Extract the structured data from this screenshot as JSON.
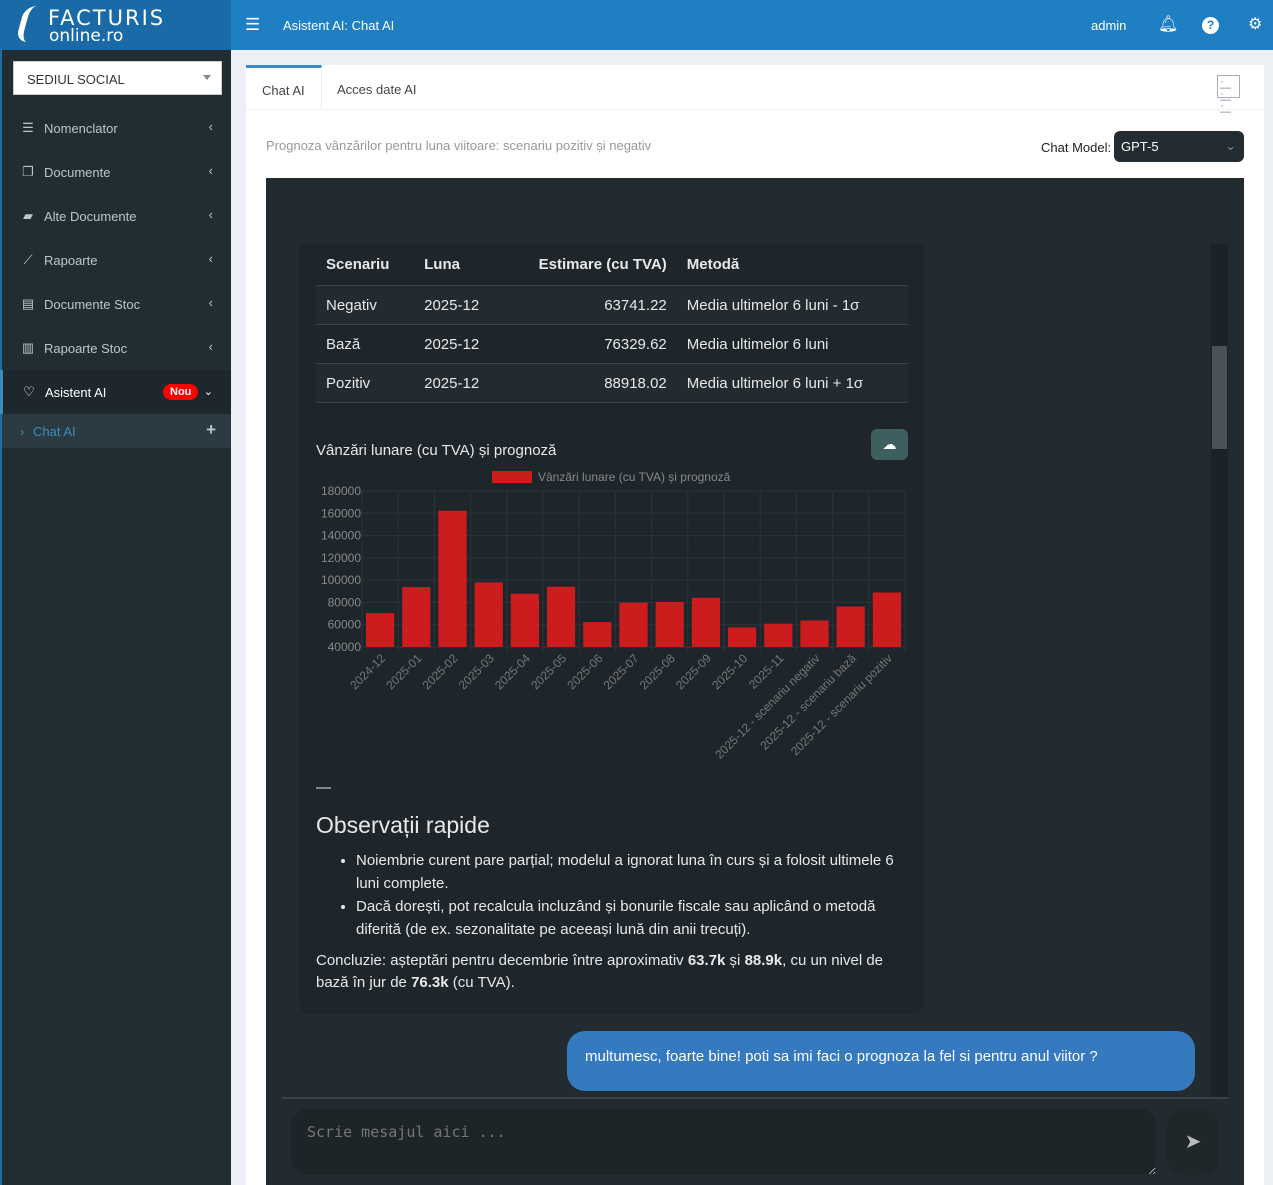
{
  "brand": {
    "line1": "FACTURIS",
    "line2": "online.ro"
  },
  "topbar": {
    "title": "Asistent AI: Chat AI",
    "user": "admin"
  },
  "sidebar": {
    "branch": "SEDIUL SOCIAL",
    "items": [
      {
        "label": "Nomenclator",
        "icon": "list-icon"
      },
      {
        "label": "Documente",
        "icon": "copy-icon"
      },
      {
        "label": "Alte Documente",
        "icon": "folder-open-icon"
      },
      {
        "label": "Rapoarte",
        "icon": "line-chart-icon"
      },
      {
        "label": "Documente Stoc",
        "icon": "file-text-icon"
      },
      {
        "label": "Rapoarte Stoc",
        "icon": "bar-chart-icon"
      },
      {
        "label": "Asistent AI",
        "icon": "lightbulb-icon",
        "badge": "Nou"
      }
    ],
    "sub": {
      "label": "Chat AI"
    }
  },
  "tabs": [
    {
      "label": "Chat AI"
    },
    {
      "label": "Acces date AI"
    }
  ],
  "subtitle": "Prognoza vânzărilor pentru luna viitoare: scenariu pozitiv și negativ",
  "model": {
    "label": "Chat Model:",
    "value": "GPT-5"
  },
  "table": {
    "headers": [
      "Scenariu",
      "Luna",
      "Estimare (cu TVA)",
      "Metodă"
    ],
    "rows": [
      [
        "Negativ",
        "2025-12",
        "63741.22",
        "Media ultimelor 6 luni - 1σ"
      ],
      [
        "Bază",
        "2025-12",
        "76329.62",
        "Media ultimelor 6 luni"
      ],
      [
        "Pozitiv",
        "2025-12",
        "88918.02",
        "Media ultimelor 6 luni + 1σ"
      ]
    ]
  },
  "chart_title": "Vânzări lunare (cu TVA) și prognoză",
  "chart_data": {
    "type": "bar",
    "title": "",
    "legend": "top",
    "grid": true,
    "ylim": [
      40000,
      180000
    ],
    "yticks": [
      180000,
      160000,
      140000,
      120000,
      100000,
      80000,
      60000,
      40000
    ],
    "bar_color": "#cc1c1e",
    "categories": [
      "2024-12",
      "2025-01",
      "2025-02",
      "2025-03",
      "2025-04",
      "2025-05",
      "2025-06",
      "2025-07",
      "2025-08",
      "2025-09",
      "2025-10",
      "2025-11",
      "2025-12 - scenariu negativ",
      "2025-12 - scenariu bază",
      "2025-12 - scenariu pozitiv"
    ],
    "series": [
      {
        "name": "Vânzări lunare (cu TVA) și prognoză",
        "values": [
          70500,
          93800,
          162300,
          98000,
          87800,
          94100,
          62400,
          79800,
          80400,
          84200,
          57600,
          60900,
          63741.22,
          76329.62,
          88918.02
        ]
      }
    ]
  },
  "separator": "—",
  "obs_title": "Observații rapide",
  "bullets": [
    "Noiembrie curent pare parțial; modelul a ignorat luna în curs și a folosit ultimele 6 luni complete.",
    "Dacă dorești, pot recalcula incluzând și bonurile fiscale sau aplicând o metodă diferită (de ex. sezonalitate pe aceeași lună din anii trecuți)."
  ],
  "conclusion": {
    "p1": "Concluzie: așteptări pentru decembrie între aproximativ ",
    "b1": "63.7k",
    "p2": " și ",
    "b2": "88.9k",
    "p3": ", cu un nivel de bază în jur de ",
    "b3": "76.3k",
    "p4": " (cu TVA)."
  },
  "user_message": "multumesc, foarte bine! poti sa imi faci o prognoza la fel si pentru anul viitor ?",
  "input": {
    "placeholder": "Scrie mesajul aici ..."
  }
}
